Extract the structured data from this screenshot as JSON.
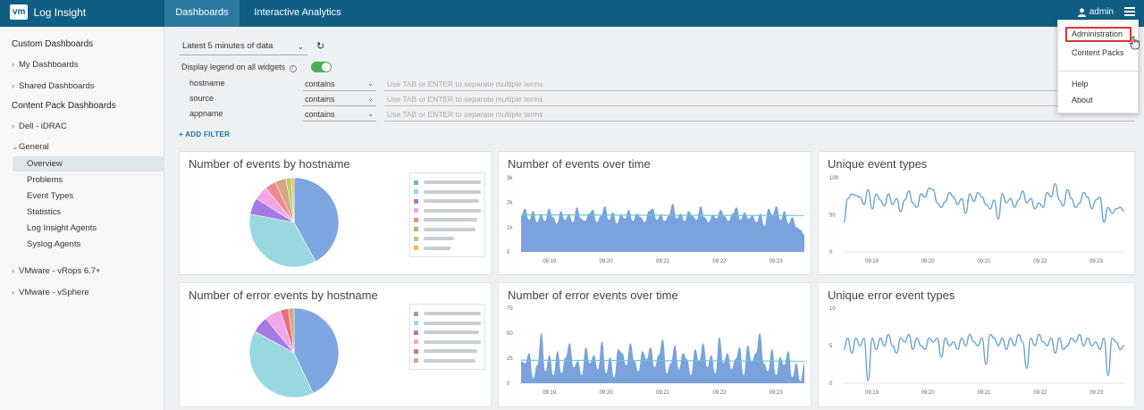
{
  "header": {
    "logo": "vm",
    "app_title": "Log Insight",
    "tabs": [
      {
        "label": "Dashboards",
        "active": true
      },
      {
        "label": "Interactive Analytics",
        "active": false
      }
    ],
    "user": "admin",
    "menu": {
      "items": [
        "Administration",
        "Content Packs",
        "Help",
        "About"
      ],
      "highlighted": "Administration"
    }
  },
  "sidebar": {
    "custom_heading": "Custom Dashboards",
    "my_dashboards": "My Dashboards",
    "shared_dashboards": "Shared Dashboards",
    "content_pack_heading": "Content Pack Dashboards",
    "dell": "Dell - iDRAC",
    "general": "General",
    "general_items": [
      "Overview",
      "Problems",
      "Event Types",
      "Statistics",
      "Log Insight Agents",
      "Syslog Agents"
    ],
    "active_item": "Overview",
    "vrops": "VMware - vRops 6.7+",
    "vsphere": "VMware - vSphere"
  },
  "filters": {
    "time_range": "Latest 5 minutes of data",
    "legend_label": "Display legend on all widgets",
    "legend_on": true,
    "rows": [
      {
        "field": "hostname",
        "op": "contains",
        "placeholder": "Use TAB or ENTER to separate multiple terms"
      },
      {
        "field": "source",
        "op": "contains",
        "placeholder": "Use TAB or ENTER to separate multiple terms"
      },
      {
        "field": "appname",
        "op": "contains",
        "placeholder": "Use TAB or ENTER to separate multiple terms"
      }
    ],
    "add_filter": "+ ADD FILTER"
  },
  "widgets": {
    "pie1": {
      "title": "Number of events by hostname"
    },
    "area1": {
      "title": "Number of events over time"
    },
    "line1": {
      "title": "Unique event types"
    },
    "pie2": {
      "title": "Number of error events by hostname"
    },
    "area2": {
      "title": "Number of error events over time"
    },
    "line2": {
      "title": "Unique error event types"
    }
  },
  "colors": {
    "header": "#0f5f84",
    "area_fill": "#7aa2dd",
    "line": "#6ba3cf",
    "trend": "#66c9c9"
  },
  "chart_data": [
    {
      "type": "pie",
      "title": "Number of events by hostname",
      "values": [
        42,
        36,
        6,
        5,
        4,
        4,
        2,
        1
      ],
      "colors": [
        "#7ea6e0",
        "#9ad8e0",
        "#a678e2",
        "#f0a6e8",
        "#f08a8a",
        "#d9a384",
        "#b9cf6a",
        "#f2b84d"
      ]
    },
    {
      "type": "area",
      "title": "Number of events over time",
      "x_ticks": [
        "09:19",
        "09:20",
        "09:21",
        "09:22",
        "09:23"
      ],
      "y_ticks": [
        "0",
        "1k",
        "2k",
        "3k"
      ],
      "ylim": [
        0,
        3000
      ],
      "values": [
        1450,
        1750,
        1300,
        1650,
        1200,
        1500,
        1250,
        1750,
        1400,
        1150,
        1650,
        1300,
        1500,
        1200,
        1800,
        1350,
        1250,
        1550,
        1700,
        1200,
        1450,
        1850,
        1300,
        1600,
        1150,
        1500,
        1350,
        1700,
        1250,
        1550,
        1400,
        1200,
        1650,
        1750,
        1300,
        1500,
        1250,
        1450,
        1950,
        1350,
        1550,
        1250,
        1650,
        1450,
        1300,
        1850,
        1400,
        1200,
        1500,
        1350,
        1700,
        1450,
        1250,
        1550,
        1800,
        1300,
        1600,
        1350,
        1450,
        1200,
        1550,
        1050,
        1750,
        1500,
        1850,
        1300,
        1650,
        1150,
        1400,
        1000,
        900,
        700
      ],
      "trend": [
        1500,
        1470
      ]
    },
    {
      "type": "line",
      "title": "Unique event types",
      "x_ticks": [
        "09:19",
        "09:20",
        "09:21",
        "09:22",
        "09:23"
      ],
      "y_ticks": [
        "0",
        "50",
        "100"
      ],
      "ylim": [
        0,
        100
      ],
      "values": [
        40,
        72,
        78,
        76,
        74,
        64,
        84,
        58,
        78,
        70,
        62,
        78,
        64,
        72,
        54,
        70,
        82,
        66,
        60,
        78,
        74,
        86,
        84,
        66,
        60,
        68,
        80,
        74,
        64,
        72,
        52,
        78,
        68,
        80,
        74,
        64,
        58,
        70,
        44,
        78,
        66,
        72,
        60,
        70,
        82,
        66,
        72,
        58,
        66,
        60,
        80,
        74,
        92,
        70,
        62,
        84,
        72,
        60,
        66,
        80,
        74,
        58,
        70,
        74,
        40,
        60,
        52,
        58,
        60,
        55
      ]
    },
    {
      "type": "pie",
      "title": "Number of error events by hostname",
      "values": [
        43,
        40,
        6,
        6,
        3,
        2
      ],
      "colors": [
        "#7ea6e0",
        "#9ad8e0",
        "#a678e2",
        "#f0a6e8",
        "#e8707a",
        "#d9a384"
      ]
    },
    {
      "type": "area",
      "title": "Number of error events over time",
      "x_ticks": [
        "09:19",
        "09:20",
        "09:21",
        "09:22",
        "09:23"
      ],
      "y_ticks": [
        "0",
        "25",
        "50",
        "75"
      ],
      "ylim": [
        0,
        75
      ],
      "values": [
        22,
        20,
        30,
        5,
        18,
        50,
        12,
        28,
        8,
        32,
        10,
        26,
        40,
        16,
        22,
        8,
        36,
        20,
        28,
        14,
        42,
        10,
        26,
        6,
        34,
        30,
        18,
        40,
        22,
        12,
        32,
        24,
        36,
        16,
        28,
        44,
        10,
        20,
        38,
        14,
        30,
        24,
        8,
        34,
        22,
        40,
        16,
        28,
        10,
        46,
        20,
        30,
        14,
        24,
        36,
        8,
        38,
        22,
        30,
        50,
        20,
        12,
        34,
        8,
        26,
        18,
        32,
        6,
        20,
        2,
        20
      ],
      "trend": [
        23,
        22
      ]
    },
    {
      "type": "line",
      "title": "Unique error event types",
      "x_ticks": [
        "09:19",
        "09:20",
        "09:21",
        "09:22",
        "09:23"
      ],
      "y_ticks": [
        "0",
        "5",
        "10"
      ],
      "ylim": [
        0,
        10
      ],
      "values": [
        4.5,
        6.0,
        4.0,
        6.0,
        5.0,
        6.0,
        0.3,
        6.0,
        4.5,
        6.0,
        5.0,
        6.5,
        5.0,
        4.0,
        6.0,
        5.5,
        6.5,
        4.5,
        6.0,
        5.0,
        4.5,
        6.0,
        5.5,
        6.0,
        3.5,
        6.0,
        5.0,
        5.5,
        4.5,
        6.0,
        5.0,
        6.5,
        5.5,
        5.0,
        6.0,
        2.5,
        6.5,
        6.0,
        5.0,
        6.0,
        4.5,
        6.0,
        5.0,
        6.5,
        5.5,
        2.0,
        6.0,
        5.0,
        6.5,
        5.5,
        5.0,
        6.0,
        4.0,
        6.0,
        4.5,
        5.0,
        6.0,
        5.5,
        6.5,
        5.0,
        6.0,
        5.0,
        5.5,
        4.5,
        6.0,
        1.0,
        6.0,
        5.5,
        4.5,
        5.0
      ]
    }
  ]
}
